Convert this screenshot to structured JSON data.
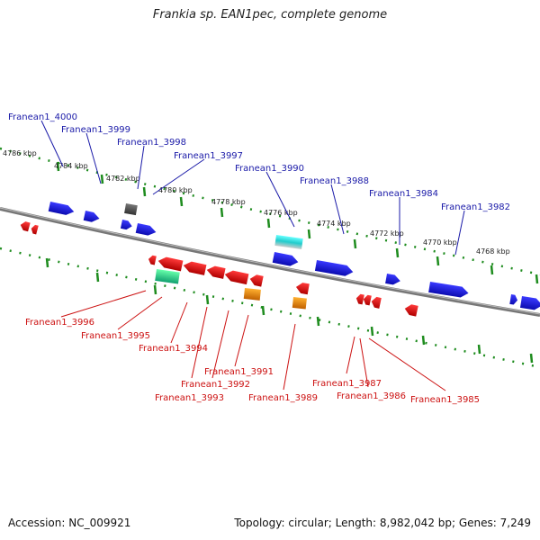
{
  "title": "Frankia sp. EAN1pec, complete genome",
  "footer": {
    "accession": "Accession: NC_009921",
    "topology": "Topology: circular; Length: 8,982,042 bp; Genes: 7,249"
  },
  "scale_ticks": [
    "4786 kbp",
    "4784 kbp",
    "4782 kbp",
    "4780 kbp",
    "4778 kbp",
    "4776 kbp",
    "4774 kbp",
    "4772 kbp",
    "4770 kbp",
    "4768 kbp"
  ],
  "forward_genes": [
    "Franean1_4000",
    "Franean1_3999",
    "Franean1_3998",
    "Franean1_3997",
    "Franean1_3990",
    "Franean1_3988",
    "Franean1_3984",
    "Franean1_3982"
  ],
  "reverse_genes": [
    "Franean1_3996",
    "Franean1_3995",
    "Franean1_3994",
    "Franean1_3993",
    "Franean1_3992",
    "Franean1_3991",
    "Franean1_3989",
    "Franean1_3987",
    "Franean1_3986",
    "Franean1_3985"
  ],
  "colors": {
    "forward_label": "#1a1aa8",
    "reverse_label": "#cc1111",
    "forward_gene": "#1a1ae6",
    "reverse_gene": "#e60d0d",
    "orange_gene": "#f08c00",
    "cyan_gene": "#33dddd",
    "teal_gene": "#22cc88",
    "gray_gene": "#555555",
    "tick_mark": "#1e8c1e",
    "backbone": "#777777"
  }
}
